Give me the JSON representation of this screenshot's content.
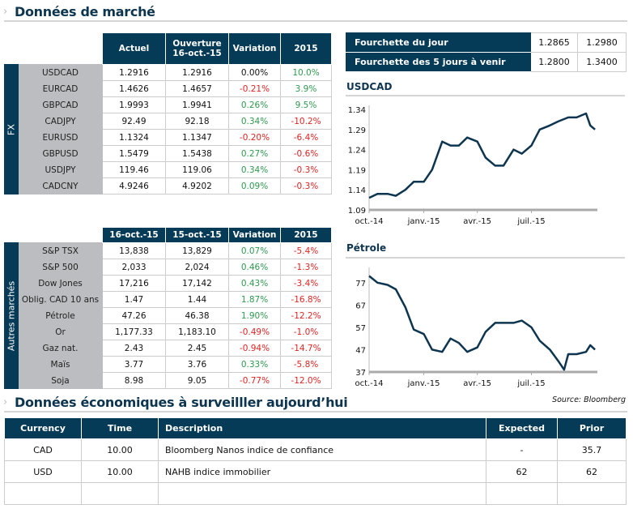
{
  "market": {
    "title": "Données de marché"
  },
  "fx": {
    "side_label": "FX",
    "headers": [
      "Actuel",
      "Ouverture",
      "16-oct.-15",
      "Variation",
      "2015"
    ],
    "rows": [
      [
        "USDCAD",
        "1.2916",
        "1.2916",
        "0.00%",
        "10.0%"
      ],
      [
        "EURCAD",
        "1.4626",
        "1.4657",
        "-0.21%",
        "3.9%"
      ],
      [
        "GBPCAD",
        "1.9993",
        "1.9941",
        "0.26%",
        "9.5%"
      ],
      [
        "CADJPY",
        "92.49",
        "92.18",
        "0.34%",
        "-10.2%"
      ],
      [
        "EURUSD",
        "1.1324",
        "1.1347",
        "-0.20%",
        "-6.4%"
      ],
      [
        "GBPUSD",
        "1.5479",
        "1.5438",
        "0.27%",
        "-0.6%"
      ],
      [
        "USDJPY",
        "119.46",
        "119.06",
        "0.34%",
        "-0.3%"
      ],
      [
        "CADCNY",
        "4.9246",
        "4.9202",
        "0.09%",
        "-0.3%"
      ]
    ]
  },
  "other": {
    "side_label": "Autres marchés",
    "headers": [
      "16-oct.-15",
      "15-oct.-15",
      "Variation",
      "2015"
    ],
    "rows": [
      [
        "S&P TSX",
        "13,838",
        "13,829",
        "0.07%",
        "-5.4%"
      ],
      [
        "S&P 500",
        "2,033",
        "2,024",
        "0.46%",
        "-1.3%"
      ],
      [
        "Dow Jones",
        "17,216",
        "17,142",
        "0.43%",
        "-3.4%"
      ],
      [
        "Oblig. CAD 10 ans",
        "1.47",
        "1.44",
        "1.87%",
        "-16.8%"
      ],
      [
        "Pétrole",
        "47.26",
        "46.38",
        "1.90%",
        "-12.2%"
      ],
      [
        "Or",
        "1,177.33",
        "1,183.10",
        "-0.49%",
        "-1.0%"
      ],
      [
        "Gaz nat.",
        "2.43",
        "2.45",
        "-0.94%",
        "-14.7%"
      ],
      [
        "Maïs",
        "3.77",
        "3.76",
        "0.33%",
        "-5.8%"
      ],
      [
        "Soja",
        "8.98",
        "9.05",
        "-0.77%",
        "-12.0%"
      ]
    ]
  },
  "ranges": [
    {
      "label": "Fourchette du  jour",
      "low": "1.2865",
      "high": "1.2980"
    },
    {
      "label": "Fourchette des 5 jours à venir",
      "low": "1.2800",
      "high": "1.3400"
    }
  ],
  "colors": {
    "navy": "#063b57",
    "positive": "#2e9a4e",
    "negative": "#e52222",
    "label_gray": "#bcbdc0"
  },
  "chart_data": [
    {
      "type": "line",
      "title": "USDCAD",
      "ylim": [
        1.09,
        1.34
      ],
      "yticks": [
        "1.09",
        "1.14",
        "1.19",
        "1.24",
        "1.29",
        "1.34"
      ],
      "xlim": [
        "2014-10-01",
        "2015-10-20"
      ],
      "xticks": [
        {
          "date": "2014-10-01",
          "label": "oct.-14"
        },
        {
          "date": "2015-01-01",
          "label": "janv.-15"
        },
        {
          "date": "2015-04-01",
          "label": "avr.-15"
        },
        {
          "date": "2015-07-01",
          "label": "juil.-15"
        }
      ],
      "x": [
        "2014-10-01",
        "2014-10-15",
        "2014-11-01",
        "2014-11-15",
        "2014-12-01",
        "2014-12-15",
        "2015-01-01",
        "2015-01-15",
        "2015-02-01",
        "2015-02-15",
        "2015-03-01",
        "2015-03-15",
        "2015-04-01",
        "2015-04-15",
        "2015-05-01",
        "2015-05-15",
        "2015-06-01",
        "2015-06-15",
        "2015-07-01",
        "2015-07-15",
        "2015-08-01",
        "2015-08-15",
        "2015-09-01",
        "2015-09-15",
        "2015-10-01",
        "2015-10-08",
        "2015-10-16"
      ],
      "y": [
        1.12,
        1.13,
        1.13,
        1.125,
        1.14,
        1.16,
        1.16,
        1.19,
        1.26,
        1.25,
        1.25,
        1.27,
        1.26,
        1.22,
        1.2,
        1.2,
        1.24,
        1.23,
        1.25,
        1.29,
        1.3,
        1.31,
        1.32,
        1.32,
        1.33,
        1.3,
        1.29
      ]
    },
    {
      "type": "line",
      "title": "Pétrole",
      "ylim": [
        37,
        82
      ],
      "yticks": [
        "37",
        "47",
        "57",
        "67",
        "77"
      ],
      "xlim": [
        "2014-10-01",
        "2015-10-20"
      ],
      "xticks": [
        {
          "date": "2014-10-01",
          "label": "oct.-14"
        },
        {
          "date": "2015-01-01",
          "label": "janv.-15"
        },
        {
          "date": "2015-04-01",
          "label": "avr.-15"
        },
        {
          "date": "2015-07-01",
          "label": "juil.-15"
        }
      ],
      "x": [
        "2014-10-01",
        "2014-10-15",
        "2014-11-01",
        "2014-11-15",
        "2014-12-01",
        "2014-12-15",
        "2015-01-01",
        "2015-01-15",
        "2015-02-01",
        "2015-02-15",
        "2015-03-01",
        "2015-03-15",
        "2015-04-01",
        "2015-04-15",
        "2015-05-01",
        "2015-05-15",
        "2015-06-01",
        "2015-06-15",
        "2015-07-01",
        "2015-07-15",
        "2015-08-01",
        "2015-08-15",
        "2015-08-25",
        "2015-09-01",
        "2015-09-15",
        "2015-10-01",
        "2015-10-08",
        "2015-10-16"
      ],
      "y": [
        80,
        77,
        76,
        74,
        66,
        56,
        54,
        47,
        46,
        52,
        50,
        46,
        48,
        55,
        59,
        59,
        59,
        60,
        57,
        51,
        47,
        42,
        38,
        45,
        45,
        46,
        49,
        47
      ]
    }
  ],
  "source": "Source: Bloomberg",
  "econ": {
    "title": "Données économiques à surveilller aujourd’hui",
    "headers": [
      "Currency",
      "Time",
      "Description",
      "Expected",
      "Prior"
    ],
    "rows": [
      [
        "CAD",
        "10.00",
        "Bloomberg Nanos indice de confiance",
        "-",
        "35.7"
      ],
      [
        "USD",
        "10.00",
        "NAHB indice immobilier",
        "62",
        "62"
      ],
      [
        "",
        "",
        "",
        "",
        ""
      ]
    ]
  }
}
